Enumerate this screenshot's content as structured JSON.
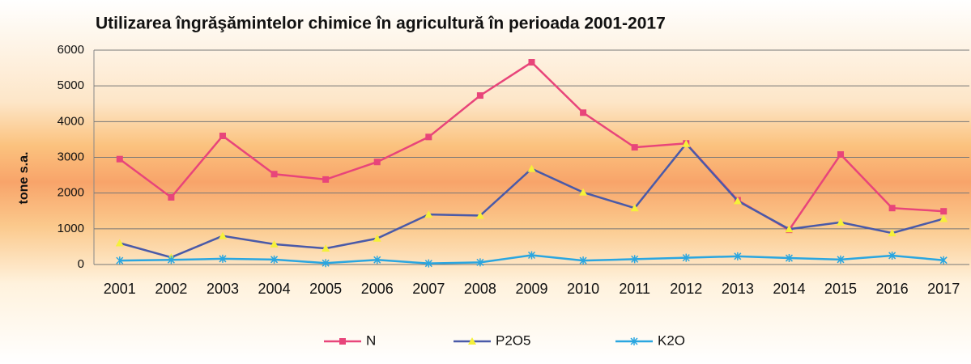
{
  "chart_data": {
    "type": "line",
    "title": "Utilizarea îngrăşămintelor chimice în agricultură în perioada 2001-2017",
    "y_label": "tone s.a.",
    "categories": [
      "2001",
      "2002",
      "2003",
      "2004",
      "2005",
      "2006",
      "2007",
      "2008",
      "2009",
      "2010",
      "2011",
      "2012",
      "2013",
      "2014",
      "2015",
      "2016",
      "2017"
    ],
    "series": [
      {
        "name": "N",
        "color": "#e8457a",
        "marker": "square",
        "values": [
          2950,
          1880,
          3600,
          2530,
          2380,
          2870,
          3570,
          4730,
          5660,
          4250,
          3280,
          3390,
          1800,
          970,
          3080,
          1580,
          1490
        ]
      },
      {
        "name": "P2O5",
        "color": "#4a5aa8",
        "marker": "triangle",
        "values": [
          600,
          200,
          800,
          570,
          450,
          730,
          1400,
          1370,
          2680,
          2020,
          1580,
          3380,
          1780,
          990,
          1180,
          880,
          1280
        ]
      },
      {
        "name": "K2O",
        "color": "#2aa6e0",
        "marker": "star",
        "values": [
          110,
          130,
          160,
          140,
          40,
          130,
          30,
          60,
          260,
          110,
          150,
          190,
          230,
          180,
          140,
          250,
          120
        ]
      }
    ],
    "ylim": [
      0,
      6000
    ],
    "yticks": [
      0,
      1000,
      2000,
      3000,
      4000,
      5000,
      6000
    ],
    "grid": true,
    "legend": "bottom"
  }
}
